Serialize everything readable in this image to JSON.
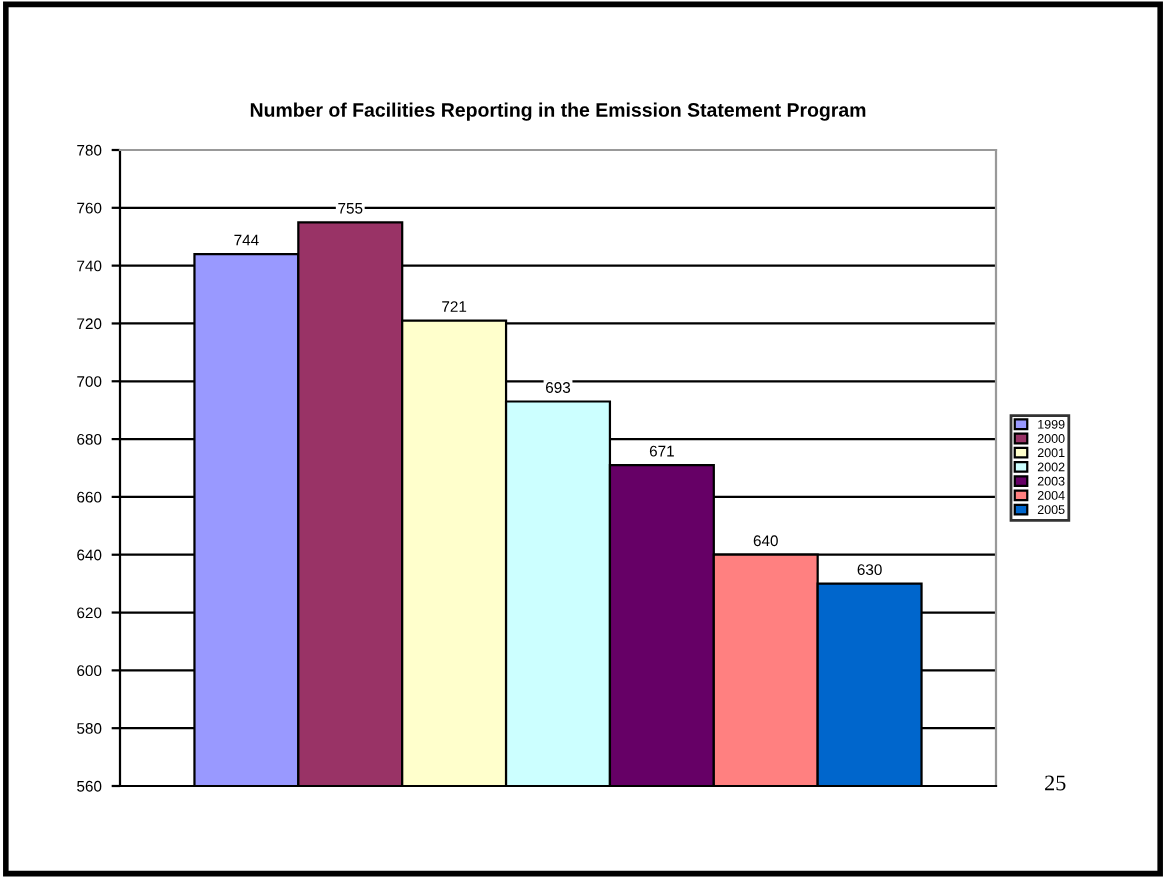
{
  "chart_data": {
    "type": "bar",
    "title": "Number of Facilities Reporting in the Emission Statement Program",
    "categories": [
      null
    ],
    "series": [
      {
        "name": "1999",
        "color": "#9999ff",
        "values": [
          744
        ]
      },
      {
        "name": "2000",
        "color": "#993366",
        "values": [
          755
        ]
      },
      {
        "name": "2001",
        "color": "#ffffcc",
        "values": [
          721
        ]
      },
      {
        "name": "2002",
        "color": "#ccffff",
        "values": [
          693
        ]
      },
      {
        "name": "2003",
        "color": "#660066",
        "values": [
          671
        ]
      },
      {
        "name": "2004",
        "color": "#ff8080",
        "values": [
          640
        ]
      },
      {
        "name": "2005",
        "color": "#0066cc",
        "values": [
          630
        ]
      }
    ],
    "ylim": [
      560,
      780
    ],
    "yticks": [
      560,
      580,
      600,
      620,
      640,
      660,
      680,
      700,
      720,
      740,
      760,
      780
    ],
    "grid": "y",
    "legend": "right",
    "data_labels": true,
    "annotations": [
      "25"
    ]
  }
}
